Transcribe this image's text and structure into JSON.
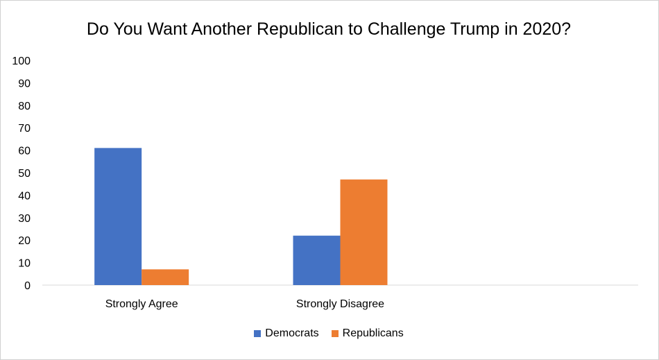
{
  "chart_data": {
    "type": "bar",
    "title": "Do You Want Another Republican to Challenge Trump in 2020?",
    "categories": [
      "Strongly Agree",
      "Strongly Disagree",
      ""
    ],
    "series": [
      {
        "name": "Democrats",
        "color": "#4472C4",
        "values": [
          61,
          22,
          null
        ]
      },
      {
        "name": "Republicans",
        "color": "#ED7D31",
        "values": [
          7,
          47,
          null
        ]
      }
    ],
    "yticks": [
      "0",
      "10",
      "20",
      "30",
      "40",
      "50",
      "60",
      "70",
      "80",
      "90",
      "100"
    ],
    "ylim": [
      0,
      100
    ],
    "legend_position": "bottom",
    "grid": false
  }
}
